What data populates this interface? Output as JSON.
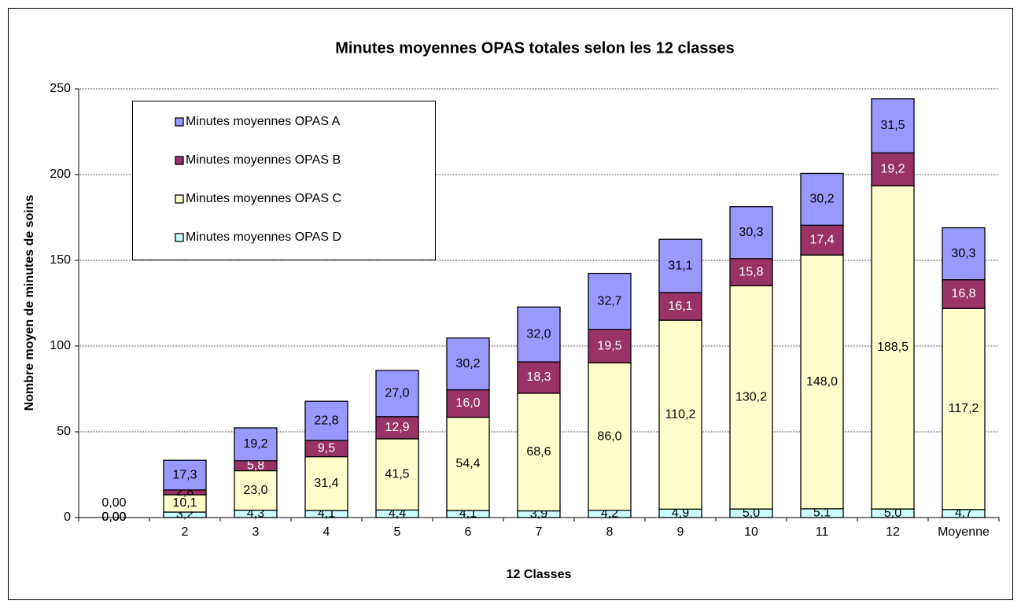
{
  "chart_data": {
    "type": "stacked_bar",
    "title": "Minutes moyennes OPAS totales selon les 12 classes",
    "xlabel": "12 Classes",
    "ylabel": "Nombre moyen de minutes de soins",
    "categories": [
      null,
      "2",
      "3",
      "4",
      "5",
      "6",
      "7",
      "8",
      "9",
      "10",
      "11",
      "12",
      "Moyenne"
    ],
    "ylim": [
      0,
      250
    ],
    "yticks": [
      0,
      50,
      100,
      150,
      200,
      250
    ],
    "grid": true,
    "legend": "upper left",
    "series": [
      {
        "name": "Minutes moyennes OPAS A",
        "color": "#9999ff",
        "values": [
          0,
          17.3,
          19.2,
          22.8,
          27.0,
          30.2,
          32.0,
          32.7,
          31.1,
          30.3,
          30.2,
          31.5,
          30.3
        ],
        "value_labels": [
          "0,00",
          "17,3",
          "19,2",
          "22,8",
          "27,0",
          "30,2",
          "32,0",
          "32,7",
          "31,1",
          "30,3",
          "30,2",
          "31,5",
          "30,3"
        ]
      },
      {
        "name": "Minutes moyennes OPAS B",
        "color": "#993366",
        "values": [
          0,
          2.8,
          5.8,
          9.5,
          12.9,
          16.0,
          18.3,
          19.5,
          16.1,
          15.8,
          17.4,
          19.2,
          16.8
        ],
        "value_labels": [
          "0,00",
          "2,8",
          "5,8",
          "9,5",
          "12,9",
          "16,0",
          "18,3",
          "19,5",
          "16,1",
          "15,8",
          "17,4",
          "19,2",
          "16,8"
        ]
      },
      {
        "name": "Minutes moyennes OPAS C",
        "color": "#ffffcc",
        "values": [
          0,
          10.1,
          23.0,
          31.4,
          41.5,
          54.4,
          68.6,
          86.0,
          110.2,
          130.2,
          148.0,
          188.5,
          117.2
        ],
        "value_labels": [
          "0,00",
          "10,1",
          "23,0",
          "31,4",
          "41,5",
          "54,4",
          "68,6",
          "86,0",
          "110,2",
          "130,2",
          "148,0",
          "188,5",
          "117,2"
        ]
      },
      {
        "name": "Minutes moyennes OPAS D",
        "color": "#ccffff",
        "values": [
          0,
          3.2,
          4.3,
          4.1,
          4.4,
          4.1,
          3.9,
          4.2,
          4.9,
          5.0,
          5.1,
          5.0,
          4.7
        ],
        "value_labels": [
          "0,00",
          "3,2",
          "4,3",
          "4,1",
          "4,4",
          "4,1",
          "3,9",
          "4,2",
          "4,9",
          "5,0",
          "5,1",
          "5,0",
          "4,7"
        ]
      }
    ]
  }
}
